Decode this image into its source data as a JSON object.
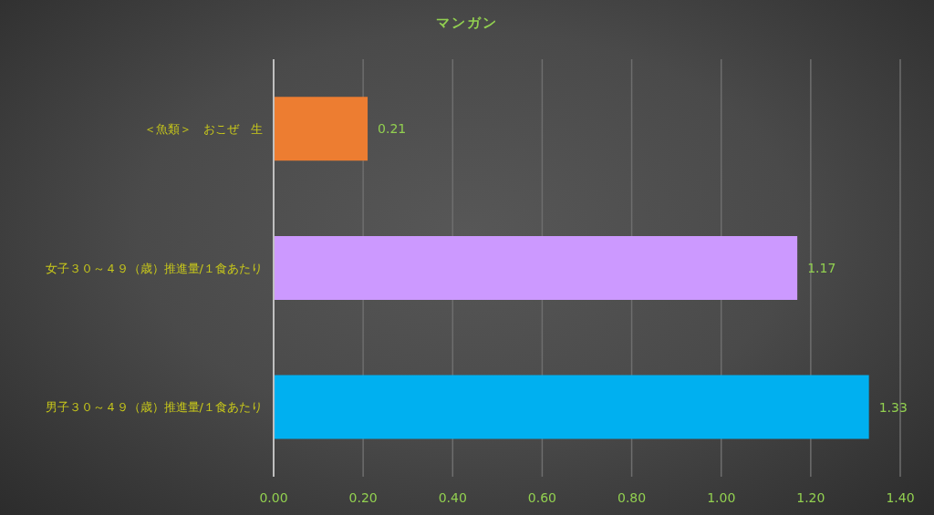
{
  "chart_data": {
    "type": "bar",
    "orientation": "horizontal",
    "title": "マンガン",
    "categories": [
      "＜魚類＞　おこぜ　生",
      "女子３０～４９（歳）推進量/１食あたり",
      "男子３０～４９（歳）推進量/１食あたり"
    ],
    "values": [
      0.21,
      1.17,
      1.33
    ],
    "colors": [
      "#ed7d31",
      "#cc99ff",
      "#00b0f0"
    ],
    "xlim": [
      0,
      1.4
    ],
    "xticks": [
      {
        "value": 0,
        "label": "0.00"
      },
      {
        "value": 0.2,
        "label": "0.20"
      },
      {
        "value": 0.4,
        "label": "0.40"
      },
      {
        "value": 0.6,
        "label": "0.60"
      },
      {
        "value": 0.8,
        "label": "0.80"
      },
      {
        "value": 1.0,
        "label": "1.00"
      },
      {
        "value": 1.2,
        "label": "1.20"
      },
      {
        "value": 1.4,
        "label": "1.40"
      }
    ],
    "grid": "x",
    "data_labels": true
  }
}
